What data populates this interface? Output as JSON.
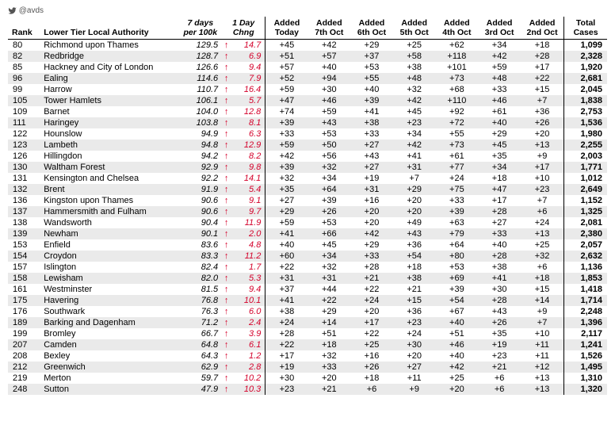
{
  "handle": "@avds",
  "headers": {
    "rank": "Rank",
    "name": "Lower Tier Local Authority",
    "per100_l1": "7 days",
    "per100_l2": "per 100k",
    "chng_l1": "1 Day",
    "chng_l2": "Chng",
    "added": [
      "Added",
      "Added",
      "Added",
      "Added",
      "Added",
      "Added",
      "Added"
    ],
    "added_dates": [
      "Today",
      "7th Oct",
      "6th Oct",
      "5th Oct",
      "4th Oct",
      "3rd Oct",
      "2nd Oct"
    ],
    "total_l1": "Total",
    "total_l2": "Cases"
  },
  "arrow": "↑",
  "rows": [
    {
      "rank": "80",
      "name": "Richmond upon Thames",
      "per100": "129.5",
      "chng": "14.7",
      "a": [
        "+45",
        "+42",
        "+29",
        "+25",
        "+62",
        "+34",
        "+18"
      ],
      "total": "1,099"
    },
    {
      "rank": "82",
      "name": "Redbridge",
      "per100": "128.7",
      "chng": "6.9",
      "a": [
        "+51",
        "+57",
        "+37",
        "+58",
        "+118",
        "+42",
        "+28"
      ],
      "total": "2,328"
    },
    {
      "rank": "85",
      "name": "Hackney and City of London",
      "per100": "126.6",
      "chng": "9.4",
      "a": [
        "+57",
        "+40",
        "+53",
        "+38",
        "+101",
        "+59",
        "+17"
      ],
      "total": "1,920"
    },
    {
      "rank": "96",
      "name": "Ealing",
      "per100": "114.6",
      "chng": "7.9",
      "a": [
        "+52",
        "+94",
        "+55",
        "+48",
        "+73",
        "+48",
        "+22"
      ],
      "total": "2,681"
    },
    {
      "rank": "99",
      "name": "Harrow",
      "per100": "110.7",
      "chng": "16.4",
      "a": [
        "+59",
        "+30",
        "+40",
        "+32",
        "+68",
        "+33",
        "+15"
      ],
      "total": "2,045"
    },
    {
      "rank": "105",
      "name": "Tower Hamlets",
      "per100": "106.1",
      "chng": "5.7",
      "a": [
        "+47",
        "+46",
        "+39",
        "+42",
        "+110",
        "+46",
        "+7"
      ],
      "total": "1,838"
    },
    {
      "rank": "109",
      "name": "Barnet",
      "per100": "104.0",
      "chng": "12.8",
      "a": [
        "+74",
        "+59",
        "+41",
        "+45",
        "+92",
        "+61",
        "+36"
      ],
      "total": "2,753"
    },
    {
      "rank": "111",
      "name": "Haringey",
      "per100": "103.8",
      "chng": "8.1",
      "a": [
        "+39",
        "+43",
        "+38",
        "+23",
        "+72",
        "+40",
        "+26"
      ],
      "total": "1,536"
    },
    {
      "rank": "122",
      "name": "Hounslow",
      "per100": "94.9",
      "chng": "6.3",
      "a": [
        "+33",
        "+53",
        "+33",
        "+34",
        "+55",
        "+29",
        "+20"
      ],
      "total": "1,980"
    },
    {
      "rank": "123",
      "name": "Lambeth",
      "per100": "94.8",
      "chng": "12.9",
      "a": [
        "+59",
        "+50",
        "+27",
        "+42",
        "+73",
        "+45",
        "+13"
      ],
      "total": "2,255"
    },
    {
      "rank": "126",
      "name": "Hillingdon",
      "per100": "94.2",
      "chng": "8.2",
      "a": [
        "+42",
        "+56",
        "+43",
        "+41",
        "+61",
        "+35",
        "+9"
      ],
      "total": "2,003"
    },
    {
      "rank": "130",
      "name": "Waltham Forest",
      "per100": "92.9",
      "chng": "9.8",
      "a": [
        "+39",
        "+32",
        "+27",
        "+31",
        "+77",
        "+34",
        "+17"
      ],
      "total": "1,771"
    },
    {
      "rank": "131",
      "name": "Kensington and Chelsea",
      "per100": "92.2",
      "chng": "14.1",
      "a": [
        "+32",
        "+34",
        "+19",
        "+7",
        "+24",
        "+18",
        "+10"
      ],
      "total": "1,012"
    },
    {
      "rank": "132",
      "name": "Brent",
      "per100": "91.9",
      "chng": "5.4",
      "a": [
        "+35",
        "+64",
        "+31",
        "+29",
        "+75",
        "+47",
        "+23"
      ],
      "total": "2,649"
    },
    {
      "rank": "136",
      "name": "Kingston upon Thames",
      "per100": "90.6",
      "chng": "9.1",
      "a": [
        "+27",
        "+39",
        "+16",
        "+20",
        "+33",
        "+17",
        "+7"
      ],
      "total": "1,152"
    },
    {
      "rank": "137",
      "name": "Hammersmith and Fulham",
      "per100": "90.6",
      "chng": "9.7",
      "a": [
        "+29",
        "+26",
        "+20",
        "+20",
        "+39",
        "+28",
        "+6"
      ],
      "total": "1,325"
    },
    {
      "rank": "138",
      "name": "Wandsworth",
      "per100": "90.4",
      "chng": "11.9",
      "a": [
        "+59",
        "+53",
        "+20",
        "+49",
        "+63",
        "+27",
        "+24"
      ],
      "total": "2,081"
    },
    {
      "rank": "139",
      "name": "Newham",
      "per100": "90.1",
      "chng": "2.0",
      "a": [
        "+41",
        "+66",
        "+42",
        "+43",
        "+79",
        "+33",
        "+13"
      ],
      "total": "2,380"
    },
    {
      "rank": "153",
      "name": "Enfield",
      "per100": "83.6",
      "chng": "4.8",
      "a": [
        "+40",
        "+45",
        "+29",
        "+36",
        "+64",
        "+40",
        "+25"
      ],
      "total": "2,057"
    },
    {
      "rank": "154",
      "name": "Croydon",
      "per100": "83.3",
      "chng": "11.2",
      "a": [
        "+60",
        "+34",
        "+33",
        "+54",
        "+80",
        "+28",
        "+32"
      ],
      "total": "2,632"
    },
    {
      "rank": "157",
      "name": "Islington",
      "per100": "82.4",
      "chng": "1.7",
      "a": [
        "+22",
        "+32",
        "+28",
        "+18",
        "+53",
        "+38",
        "+6"
      ],
      "total": "1,136"
    },
    {
      "rank": "158",
      "name": "Lewisham",
      "per100": "82.0",
      "chng": "5.3",
      "a": [
        "+31",
        "+31",
        "+21",
        "+38",
        "+69",
        "+41",
        "+18"
      ],
      "total": "1,853"
    },
    {
      "rank": "161",
      "name": "Westminster",
      "per100": "81.5",
      "chng": "9.4",
      "a": [
        "+37",
        "+44",
        "+22",
        "+21",
        "+39",
        "+30",
        "+15"
      ],
      "total": "1,418"
    },
    {
      "rank": "175",
      "name": "Havering",
      "per100": "76.8",
      "chng": "10.1",
      "a": [
        "+41",
        "+22",
        "+24",
        "+15",
        "+54",
        "+28",
        "+14"
      ],
      "total": "1,714"
    },
    {
      "rank": "176",
      "name": "Southwark",
      "per100": "76.3",
      "chng": "6.0",
      "a": [
        "+38",
        "+29",
        "+20",
        "+36",
        "+67",
        "+43",
        "+9"
      ],
      "total": "2,248"
    },
    {
      "rank": "189",
      "name": "Barking and Dagenham",
      "per100": "71.2",
      "chng": "2.4",
      "a": [
        "+24",
        "+14",
        "+17",
        "+23",
        "+40",
        "+26",
        "+7"
      ],
      "total": "1,396"
    },
    {
      "rank": "199",
      "name": "Bromley",
      "per100": "66.7",
      "chng": "3.9",
      "a": [
        "+28",
        "+51",
        "+22",
        "+24",
        "+51",
        "+35",
        "+10"
      ],
      "total": "2,117"
    },
    {
      "rank": "207",
      "name": "Camden",
      "per100": "64.8",
      "chng": "6.1",
      "a": [
        "+22",
        "+18",
        "+25",
        "+30",
        "+46",
        "+19",
        "+11"
      ],
      "total": "1,241"
    },
    {
      "rank": "208",
      "name": "Bexley",
      "per100": "64.3",
      "chng": "1.2",
      "a": [
        "+17",
        "+32",
        "+16",
        "+20",
        "+40",
        "+23",
        "+11"
      ],
      "total": "1,526"
    },
    {
      "rank": "212",
      "name": "Greenwich",
      "per100": "62.9",
      "chng": "2.8",
      "a": [
        "+19",
        "+33",
        "+26",
        "+27",
        "+42",
        "+21",
        "+12"
      ],
      "total": "1,495"
    },
    {
      "rank": "219",
      "name": "Merton",
      "per100": "59.7",
      "chng": "10.2",
      "a": [
        "+30",
        "+20",
        "+18",
        "+11",
        "+25",
        "+6",
        "+13"
      ],
      "total": "1,310"
    },
    {
      "rank": "248",
      "name": "Sutton",
      "per100": "47.9",
      "chng": "10.3",
      "a": [
        "+23",
        "+21",
        "+6",
        "+9",
        "+20",
        "+6",
        "+13"
      ],
      "total": "1,320"
    }
  ]
}
